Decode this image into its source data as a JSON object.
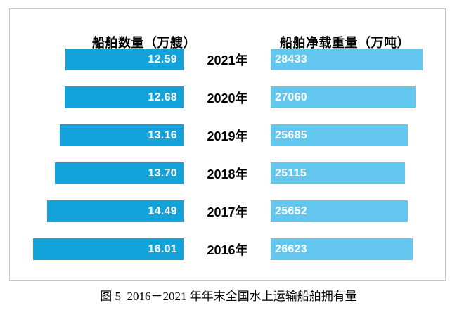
{
  "page": {
    "caption": "图 5  2016－2021 年年末全国水上运输船舶拥有量"
  },
  "colors": {
    "left_bar": "#14a2db",
    "right_bar": "#63c6ef",
    "border": "#c6c6c6",
    "label_text": "#ffffff",
    "heading_text": "#000000"
  },
  "chart_data": {
    "type": "bar",
    "variant": "diverging-tornado",
    "title": "图 5  2016－2021 年年末全国水上运输船舶拥有量",
    "left_title": "船舶数量（万艘）",
    "right_title": "船舶净载重量（万吨）",
    "categories": [
      "2021年",
      "2020年",
      "2019年",
      "2018年",
      "2017年",
      "2016年"
    ],
    "series": [
      {
        "name": "船舶数量（万艘）",
        "side": "left",
        "values": [
          12.59,
          12.68,
          13.16,
          13.7,
          14.49,
          16.01
        ],
        "labels": [
          "12.59",
          "12.68",
          "13.16",
          "13.70",
          "14.49",
          "16.01"
        ],
        "color": "#14a2db",
        "axis_range": [
          0,
          16.01
        ]
      },
      {
        "name": "船舶净载重量（万吨）",
        "side": "right",
        "values": [
          28433,
          27060,
          25685,
          25115,
          25652,
          26623
        ],
        "labels": [
          "28433",
          "27060",
          "25685",
          "25115",
          "25652",
          "26623"
        ],
        "color": "#63c6ef",
        "axis_range": [
          0,
          28433
        ]
      }
    ],
    "layout_hints": {
      "bars_grow_from_center_outward": "left series grows leftward, right series grows rightward",
      "value_labels": "inside bar ends nearest center, white bold",
      "grid": "off",
      "legend": "column headers above each bar group"
    }
  }
}
